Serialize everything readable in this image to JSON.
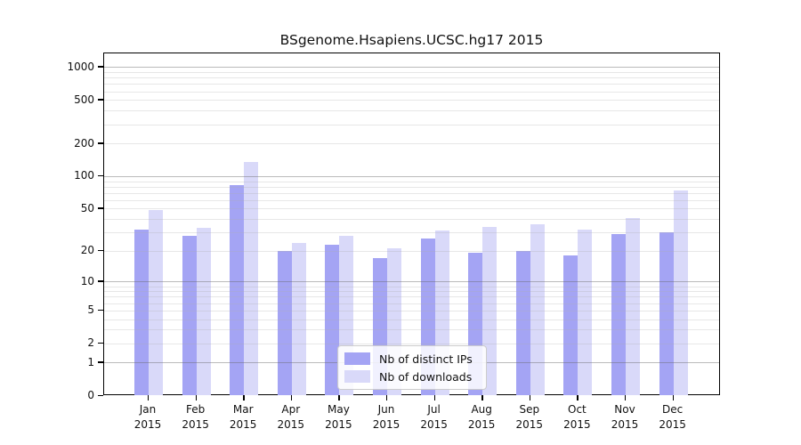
{
  "chart_data": {
    "type": "bar",
    "title": "BSgenome.Hsapiens.UCSC.hg17 2015",
    "categories": [
      "Jan 2015",
      "Feb 2015",
      "Mar 2015",
      "Apr 2015",
      "May 2015",
      "Jun 2015",
      "Jul 2015",
      "Aug 2015",
      "Sep 2015",
      "Oct 2015",
      "Nov 2015",
      "Dec 2015"
    ],
    "series": [
      {
        "name": "Nb of distinct IPs",
        "color": "#a4a4f4",
        "values": [
          32,
          28,
          82,
          20,
          23,
          17,
          26,
          19,
          20,
          18,
          29,
          30
        ]
      },
      {
        "name": "Nb of downloads",
        "color": "#d9d9f9",
        "values": [
          49,
          33,
          134,
          24,
          28,
          21,
          31,
          34,
          36,
          32,
          41,
          74
        ]
      }
    ],
    "y_axis": {
      "scale": "log10(y+1)",
      "ticks": [
        0,
        1,
        2,
        5,
        10,
        20,
        50,
        100,
        200,
        500,
        1000
      ],
      "ylim": [
        0,
        1320
      ],
      "minor_gridlines_per_decade": [
        2,
        3,
        4,
        5,
        6,
        7,
        8,
        9
      ]
    },
    "x_axis": {
      "label_line_2": "2015"
    },
    "grid": "on",
    "legend_position": "inside-bottom-center",
    "axis_color": "#000000",
    "background_color": "#ffffff"
  }
}
